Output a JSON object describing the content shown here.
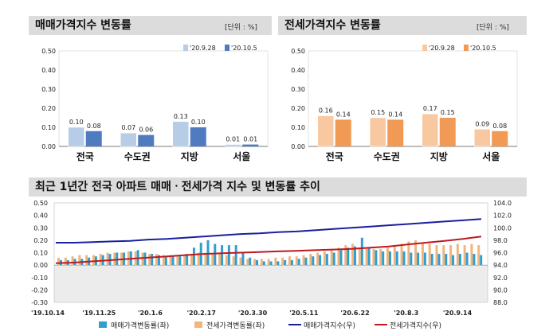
{
  "panels": {
    "sale_title": "매매가격지수 변동률",
    "jeonse_title": "전세가격지수 변동률",
    "unit": "[단위 : %]",
    "trend_title": "최근 1년간 전국 아파트 매매ㆍ전세가격 지수 및 변동률 추이"
  },
  "colors": {
    "sale_prev": "#b7cce6",
    "sale_curr": "#4f7cc0",
    "jeonse_prev": "#f8c9a1",
    "jeonse_curr": "#f09a55",
    "bar_sale": "#2e9fd0",
    "bar_jeonse": "#f2b47e",
    "line_sale": "#1a1f9e",
    "line_jeonse": "#c0181e"
  },
  "chart_data": [
    {
      "type": "bar",
      "categories": [
        "전국",
        "수도권",
        "지방",
        "서울"
      ],
      "series": [
        {
          "name": "'20.9.28",
          "values": [
            0.1,
            0.07,
            0.13,
            0.01
          ]
        },
        {
          "name": "'20.10.5",
          "values": [
            0.08,
            0.06,
            0.1,
            0.01
          ]
        }
      ],
      "ylim": [
        0,
        0.5
      ],
      "yticks": [
        "0.50",
        "0.40",
        "0.30",
        "0.20",
        "0.10",
        "0.00"
      ],
      "value_labels": [
        [
          "0.10",
          "0.07",
          "0.13",
          "0.01"
        ],
        [
          "0.08",
          "0.06",
          "0.10",
          "0.01"
        ]
      ],
      "legend": "top-right"
    },
    {
      "type": "bar",
      "categories": [
        "전국",
        "수도권",
        "지방",
        "서울"
      ],
      "series": [
        {
          "name": "'20.9.28",
          "values": [
            0.16,
            0.15,
            0.17,
            0.09
          ]
        },
        {
          "name": "'20.10.5",
          "values": [
            0.14,
            0.14,
            0.15,
            0.08
          ]
        }
      ],
      "ylim": [
        0,
        0.5
      ],
      "yticks": [
        "0.50",
        "0.40",
        "0.30",
        "0.20",
        "0.10",
        "0.00"
      ],
      "value_labels": [
        [
          "0.16",
          "0.15",
          "0.17",
          "0.09"
        ],
        [
          "0.14",
          "0.14",
          "0.15",
          "0.08"
        ]
      ],
      "legend": "top-right"
    },
    {
      "type": "bar",
      "xticks": [
        "'19.10.14",
        "'19.11.25",
        "'20.1.6",
        "'20.2.17",
        "'20.3.30",
        "'20.5.11",
        "'20.6.22",
        "'20.8.3",
        "'20.9.14"
      ],
      "yticks_left": [
        "0.50",
        "0.40",
        "0.30",
        "0.20",
        "0.10",
        "0.00",
        "-0.10",
        "-0.20",
        "-0.30"
      ],
      "yticks_right": [
        "104.0",
        "102.0",
        "100.0",
        "98.0",
        "96.0",
        "94.0",
        "92.0",
        "90.0",
        "88.0"
      ],
      "ylim_left": [
        -0.3,
        0.5
      ],
      "ylim_right": [
        88,
        104
      ],
      "series": [
        {
          "name": "매매가격변동률(좌)",
          "axis": "left",
          "values": [
            0.04,
            0.04,
            0.05,
            0.05,
            0.06,
            0.07,
            0.08,
            0.09,
            0.1,
            0.1,
            0.11,
            0.12,
            0.1,
            0.09,
            0.08,
            0.07,
            0.07,
            0.07,
            0.09,
            0.14,
            0.18,
            0.2,
            0.17,
            0.16,
            0.16,
            0.16,
            0.1,
            0.06,
            0.04,
            0.03,
            0.03,
            0.03,
            0.04,
            0.04,
            0.05,
            0.06,
            0.07,
            0.08,
            0.09,
            0.1,
            0.12,
            0.14,
            0.15,
            0.22,
            0.14,
            0.12,
            0.11,
            0.11,
            0.11,
            0.11,
            0.1,
            0.1,
            0.1,
            0.09,
            0.09,
            0.09,
            0.08,
            0.09,
            0.1,
            0.09,
            0.08
          ]
        },
        {
          "name": "전세가격변동률(좌)",
          "axis": "left",
          "values": [
            0.06,
            0.06,
            0.07,
            0.08,
            0.08,
            0.08,
            0.09,
            0.1,
            0.1,
            0.1,
            0.11,
            0.11,
            0.1,
            0.09,
            0.09,
            0.08,
            0.08,
            0.08,
            0.08,
            0.09,
            0.1,
            0.1,
            0.09,
            0.09,
            0.08,
            0.07,
            0.06,
            0.05,
            0.05,
            0.05,
            0.05,
            0.06,
            0.06,
            0.07,
            0.07,
            0.08,
            0.09,
            0.1,
            0.11,
            0.12,
            0.14,
            0.16,
            0.17,
            0.14,
            0.13,
            0.13,
            0.13,
            0.14,
            0.15,
            0.17,
            0.19,
            0.2,
            0.18,
            0.17,
            0.16,
            0.16,
            0.16,
            0.17,
            0.16,
            0.17,
            0.16
          ]
        },
        {
          "name": "매매가격지수(우)",
          "axis": "right",
          "values": [
            97.6,
            97.6,
            97.7,
            97.8,
            97.9,
            98.1,
            98.2,
            98.4,
            98.6,
            98.8,
            99.0,
            99.1,
            99.3,
            99.4,
            99.6,
            99.8,
            100.0,
            100.2,
            100.4,
            100.6,
            100.8,
            101.0,
            101.2,
            101.4
          ]
        },
        {
          "name": "전세가격지수(우)",
          "axis": "right",
          "values": [
            94.3,
            94.4,
            94.6,
            94.8,
            95.0,
            95.2,
            95.4,
            95.6,
            95.8,
            95.9,
            96.0,
            96.1,
            96.2,
            96.3,
            96.4,
            96.5,
            96.6,
            96.8,
            97.0,
            97.3,
            97.6,
            97.9,
            98.2,
            98.6
          ]
        }
      ],
      "legend": "bottom"
    }
  ]
}
